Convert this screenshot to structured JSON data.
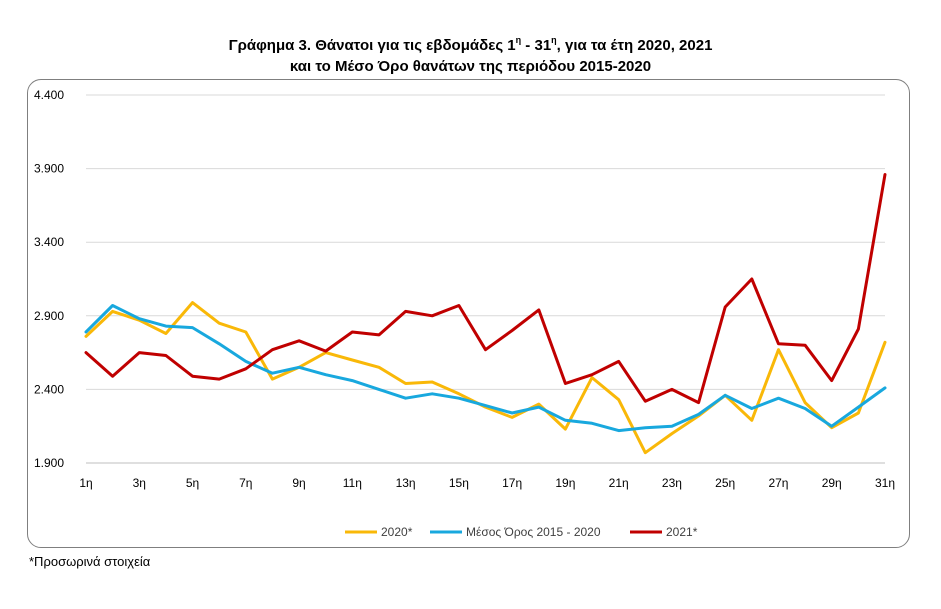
{
  "title_line1_prefix": "Γράφημα 3. Θάνατοι για τις εβδομάδες 1",
  "title_sup1": "η",
  "title_mid": " - 31",
  "title_sup2": "η",
  "title_line1_suffix": ", για τα έτη 2020, 2021",
  "title_line2": "και το Μέσο Όρο θανάτων της περιόδου 2015-2020",
  "footnote": "*Προσωρινά στοιχεία",
  "colors": {
    "s2020": "#f9b808",
    "avg": "#18a8de",
    "s2021": "#c00000",
    "grid": "#d9d9d9",
    "axis": "#bfbfbf"
  },
  "chart_data": {
    "type": "line",
    "x": [
      "1η",
      "2η",
      "3η",
      "4η",
      "5η",
      "6η",
      "7η",
      "8η",
      "9η",
      "10η",
      "11η",
      "12η",
      "13η",
      "14η",
      "15η",
      "16η",
      "17η",
      "18η",
      "19η",
      "20η",
      "21η",
      "22η",
      "23η",
      "24η",
      "25η",
      "26η",
      "27η",
      "28η",
      "29η",
      "30η",
      "31η"
    ],
    "x_tick_labels": [
      "1η",
      "3η",
      "5η",
      "7η",
      "9η",
      "11η",
      "13η",
      "15η",
      "17η",
      "19η",
      "21η",
      "23η",
      "25η",
      "27η",
      "29η",
      "31η"
    ],
    "y_tick_labels": [
      "1.900",
      "2.400",
      "2.900",
      "3.400",
      "3.900",
      "4.400"
    ],
    "y_ticks": [
      1900,
      2400,
      2900,
      3400,
      3900,
      4400
    ],
    "ylim": [
      1900,
      4400
    ],
    "grid": true,
    "legend": "bottom",
    "series": [
      {
        "name": "2020*",
        "color_key": "s2020",
        "values": [
          2760,
          2930,
          2870,
          2780,
          2990,
          2850,
          2790,
          2470,
          2550,
          2650,
          2600,
          2550,
          2440,
          2450,
          2370,
          2280,
          2210,
          2300,
          2130,
          2480,
          2330,
          1970,
          2100,
          2220,
          2360,
          2190,
          2670,
          2310,
          2140,
          2240,
          2720
        ]
      },
      {
        "name": "Μέσος Όρος 2015 - 2020",
        "color_key": "avg",
        "values": [
          2790,
          2970,
          2880,
          2830,
          2820,
          2710,
          2590,
          2510,
          2550,
          2500,
          2460,
          2400,
          2340,
          2370,
          2340,
          2290,
          2240,
          2280,
          2190,
          2170,
          2120,
          2140,
          2150,
          2230,
          2360,
          2270,
          2340,
          2270,
          2150,
          2280,
          2410
        ]
      },
      {
        "name": "2021*",
        "color_key": "s2021",
        "values": [
          2650,
          2490,
          2650,
          2630,
          2490,
          2470,
          2540,
          2670,
          2730,
          2660,
          2790,
          2770,
          2930,
          2900,
          2970,
          2670,
          2800,
          2940,
          2440,
          2500,
          2590,
          2320,
          2400,
          2310,
          2960,
          3150,
          2710,
          2700,
          2460,
          2810,
          3860
        ]
      }
    ]
  }
}
